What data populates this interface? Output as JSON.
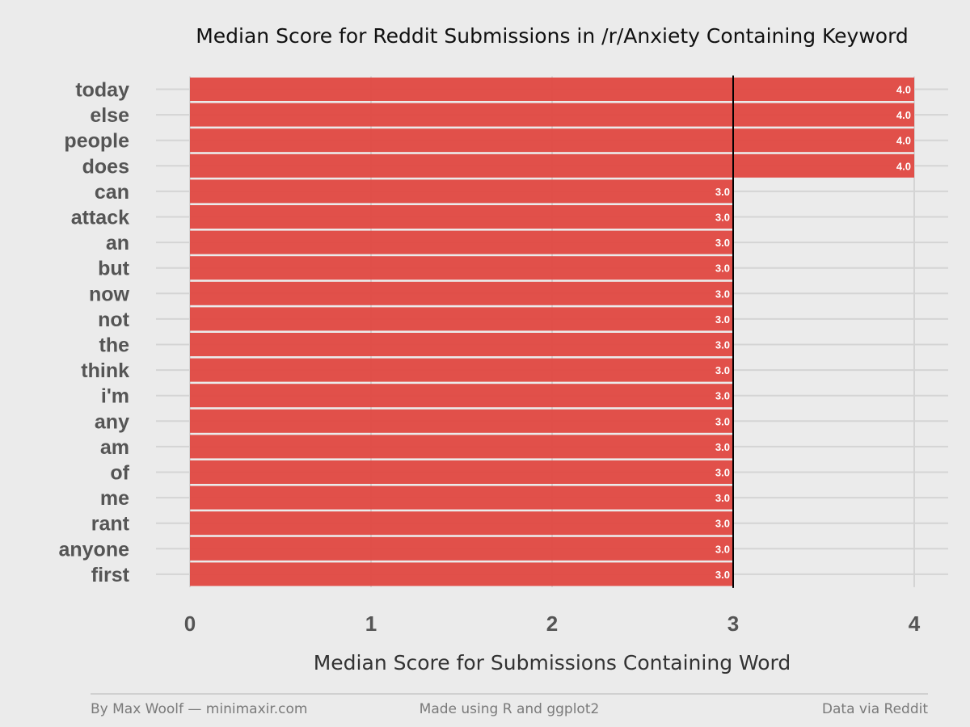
{
  "chart_data": {
    "type": "bar",
    "orientation": "horizontal",
    "title": "Median Score for Reddit Submissions in /r/Anxiety Containing Keyword",
    "xlabel": "Median Score for Submissions Containing Word",
    "ylabel": "",
    "xlim": [
      0,
      4
    ],
    "xticks": [
      "0",
      "1",
      "2",
      "3",
      "4"
    ],
    "categories": [
      "today",
      "else",
      "people",
      "does",
      "can",
      "attack",
      "an",
      "but",
      "now",
      "not",
      "the",
      "think",
      "i'm",
      "any",
      "am",
      "of",
      "me",
      "rant",
      "anyone",
      "first"
    ],
    "values": [
      4.0,
      4.0,
      4.0,
      4.0,
      3.0,
      3.0,
      3.0,
      3.0,
      3.0,
      3.0,
      3.0,
      3.0,
      3.0,
      3.0,
      3.0,
      3.0,
      3.0,
      3.0,
      3.0,
      3.0
    ],
    "value_labels": [
      "4.0",
      "4.0",
      "4.0",
      "4.0",
      "3.0",
      "3.0",
      "3.0",
      "3.0",
      "3.0",
      "3.0",
      "3.0",
      "3.0",
      "3.0",
      "3.0",
      "3.0",
      "3.0",
      "3.0",
      "3.0",
      "3.0",
      "3.0"
    ],
    "reference_line": 3,
    "grid": true,
    "colors": {
      "bar": "#e04a44",
      "background": "#ebebeb",
      "grid": "#d4d4d4",
      "reference": "#000000"
    }
  },
  "footer": {
    "left": "By Max Woolf — minimaxir.com",
    "center": "Made using R and ggplot2",
    "right": "Data via Reddit"
  }
}
